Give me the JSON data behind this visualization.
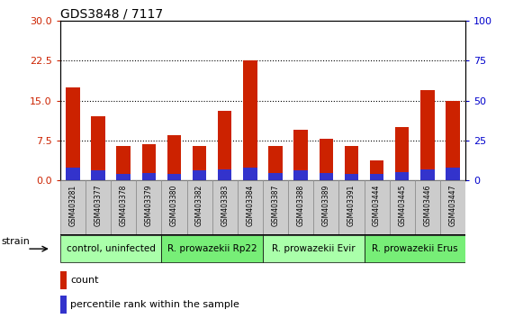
{
  "title": "GDS3848 / 7117",
  "samples": [
    "GSM403281",
    "GSM403377",
    "GSM403378",
    "GSM403379",
    "GSM403380",
    "GSM403382",
    "GSM403383",
    "GSM403384",
    "GSM403387",
    "GSM403388",
    "GSM403389",
    "GSM403391",
    "GSM403444",
    "GSM403445",
    "GSM403446",
    "GSM403447"
  ],
  "count_values": [
    17.5,
    12.0,
    6.5,
    6.8,
    8.5,
    6.5,
    13.0,
    22.5,
    6.5,
    9.5,
    7.8,
    6.5,
    3.8,
    10.0,
    17.0,
    15.0
  ],
  "percentile_values": [
    2.4,
    1.8,
    1.2,
    1.35,
    1.2,
    1.8,
    2.1,
    2.4,
    1.35,
    1.95,
    1.35,
    1.2,
    1.2,
    1.5,
    2.1,
    2.4
  ],
  "red_color": "#cc2200",
  "blue_color": "#3333cc",
  "ylim_left": [
    0,
    30
  ],
  "ylim_right": [
    0,
    100
  ],
  "yticks_left": [
    0,
    7.5,
    15,
    22.5,
    30
  ],
  "yticks_right": [
    0,
    25,
    50,
    75,
    100
  ],
  "groups": [
    {
      "label": "control, uninfected",
      "start": 0,
      "end": 4
    },
    {
      "label": "R. prowazekii Rp22",
      "start": 4,
      "end": 8
    },
    {
      "label": "R. prowazekii Evir",
      "start": 8,
      "end": 12
    },
    {
      "label": "R. prowazekii Erus",
      "start": 12,
      "end": 16
    }
  ],
  "group_colors": [
    "#aaffaa",
    "#77ee77",
    "#aaffaa",
    "#77ee77"
  ],
  "legend_items": [
    "count",
    "percentile rank within the sample"
  ],
  "bar_width": 0.55,
  "axis_color_left": "#cc2200",
  "axis_color_right": "#0000cc",
  "tick_gray": "#888888",
  "sample_box_color": "#cccccc",
  "sample_box_edge": "#888888"
}
